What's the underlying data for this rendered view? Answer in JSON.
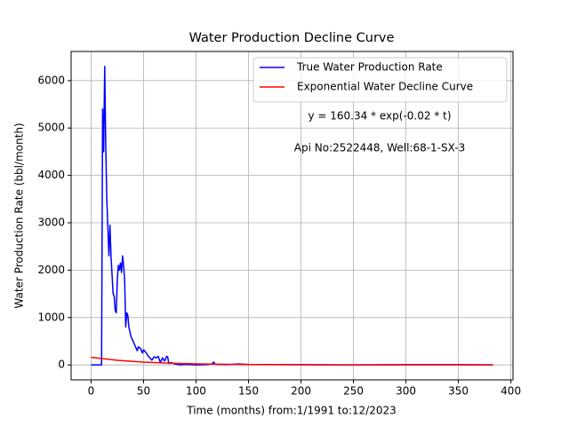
{
  "chart_data": {
    "type": "line",
    "title": "Water Production Decline Curve",
    "xlabel": "Time (months) from:1/1991 to:12/2023",
    "ylabel": "Water Production Rate (bbl/month)",
    "annotations": [
      "y = 160.34 * exp(-0.02 * t)",
      "Api No:2522448, Well:68-1-SX-3"
    ],
    "series": [
      {
        "name": "True Water Production Rate",
        "color": "#0000ff",
        "x": [
          0,
          10,
          11,
          12,
          13,
          14,
          15,
          17,
          18,
          19,
          21,
          22,
          23,
          24,
          25,
          26,
          27,
          28,
          29,
          30,
          31,
          32,
          33,
          34,
          35,
          36,
          38,
          40,
          42,
          44,
          45,
          47,
          49,
          50,
          52,
          54,
          56,
          58,
          60,
          62,
          64,
          66,
          68,
          70,
          72,
          73,
          74,
          76,
          80,
          85,
          90,
          100,
          110,
          115,
          117,
          118,
          120,
          130,
          140,
          150,
          200,
          250,
          300,
          350,
          383
        ],
        "values": [
          0,
          0,
          5400,
          4500,
          6300,
          4600,
          3500,
          2300,
          2950,
          2300,
          1500,
          1450,
          1150,
          1100,
          1800,
          2100,
          2000,
          2150,
          1950,
          2300,
          2100,
          1800,
          800,
          1100,
          1050,
          800,
          600,
          500,
          400,
          300,
          380,
          350,
          250,
          320,
          270,
          200,
          150,
          100,
          170,
          150,
          180,
          50,
          150,
          80,
          180,
          170,
          30,
          50,
          20,
          0,
          10,
          0,
          5,
          20,
          60,
          20,
          10,
          5,
          20,
          10,
          5,
          0,
          5,
          5,
          0
        ]
      },
      {
        "name": "Exponential Water Decline Curve",
        "color": "#ff0000",
        "x": [
          0,
          25,
          50,
          75,
          100,
          150,
          200,
          250,
          300,
          383
        ],
        "values": [
          160.34,
          97.25,
          58.99,
          35.78,
          21.7,
          7.98,
          2.94,
          1.08,
          0.4,
          0.076
        ]
      }
    ],
    "xlim": [
      -19,
      402
    ],
    "ylim": [
      -315,
      6615
    ],
    "xticks": [
      0,
      50,
      100,
      150,
      200,
      250,
      300,
      350,
      400
    ],
    "yticks": [
      0,
      1000,
      2000,
      3000,
      4000,
      5000,
      6000
    ],
    "grid": true,
    "legend": "upper right"
  }
}
